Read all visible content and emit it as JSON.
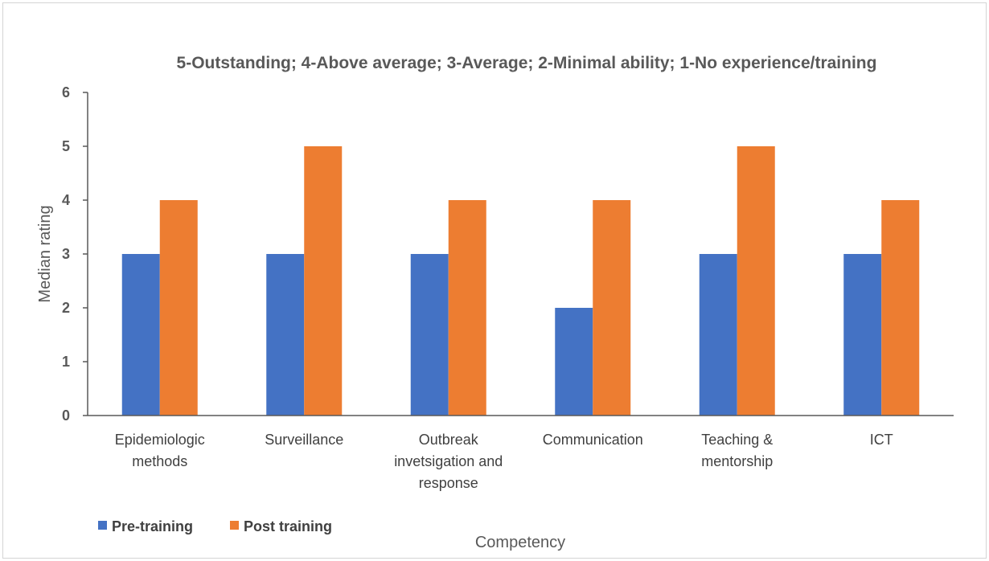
{
  "chart_data": {
    "type": "bar",
    "title": "5-Outstanding; 4-Above average; 3-Average; 2-Minimal ability; 1-No experience/training",
    "xlabel": "Competency",
    "ylabel": "Median rating",
    "ylim": [
      0,
      6
    ],
    "yticks": [
      "0",
      "1",
      "2",
      "3",
      "4",
      "5",
      "6"
    ],
    "grid": false,
    "legend_position": "bottom-left",
    "categories": [
      [
        "Epidemiologic",
        "methods"
      ],
      [
        "Surveillance"
      ],
      [
        "Outbreak",
        "invetsigation and",
        "response"
      ],
      [
        "Communication"
      ],
      [
        "Teaching &",
        "mentorship"
      ],
      [
        "ICT"
      ]
    ],
    "series": [
      {
        "name": "Pre-training",
        "color": "#4472C4",
        "values": [
          3,
          3,
          3,
          2,
          3,
          3
        ]
      },
      {
        "name": "Post training",
        "color": "#ED7D31",
        "values": [
          4,
          5,
          4,
          4,
          5,
          4
        ]
      }
    ]
  }
}
